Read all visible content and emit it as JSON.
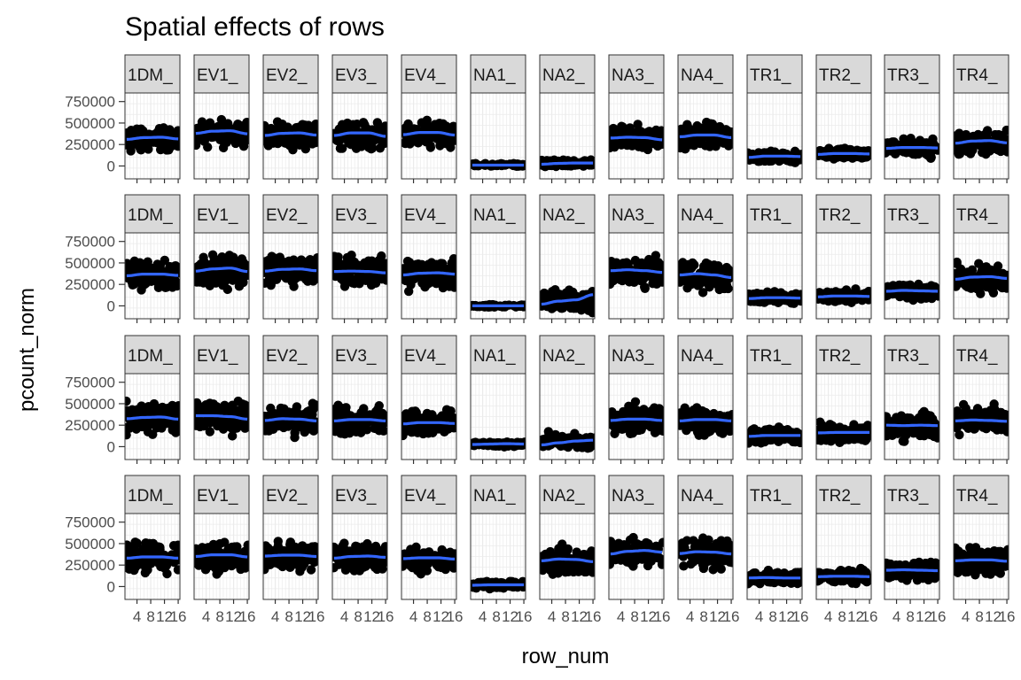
{
  "chart_data": {
    "type": "scatter",
    "title": "Spatial effects of rows",
    "xlabel": "row_num",
    "ylabel": "pcount_norm",
    "facets": [
      "1DM_",
      "EV1_",
      "EV2_",
      "EV3_",
      "EV4_",
      "NA1_",
      "NA2_",
      "NA3_",
      "NA4_",
      "TR1_",
      "TR2_",
      "TR3_",
      "TR4_"
    ],
    "panel_rows": 4,
    "x_tick_labels": [
      "4",
      "8",
      "12",
      "16"
    ],
    "x_ticks": [
      4,
      8,
      12,
      16
    ],
    "xlim": [
      0.5,
      16.5
    ],
    "y_tick_labels": [
      "0",
      "250000",
      "500000",
      "750000"
    ],
    "y_ticks": [
      0,
      250000,
      500000,
      750000
    ],
    "ylim": [
      -150000,
      850000
    ],
    "grid": true,
    "point_color": "#000000",
    "smooth_color": "#3366FF",
    "strip_fill": "#D9D9D9",
    "grid_color": "#EBEBEB",
    "panels": [
      [
        {
          "mean": 310000,
          "spread": 180000,
          "trend": [
            310000,
            330000,
            335000,
            315000
          ]
        },
        {
          "mean": 380000,
          "spread": 200000,
          "trend": [
            380000,
            405000,
            410000,
            375000
          ]
        },
        {
          "mean": 360000,
          "spread": 200000,
          "trend": [
            355000,
            380000,
            385000,
            360000
          ]
        },
        {
          "mean": 350000,
          "spread": 200000,
          "trend": [
            355000,
            385000,
            385000,
            345000
          ]
        },
        {
          "mean": 360000,
          "spread": 200000,
          "trend": [
            365000,
            390000,
            390000,
            360000
          ]
        },
        {
          "mean": 10000,
          "spread": 25000,
          "trend": [
            10000,
            10000,
            10000,
            10000
          ]
        },
        {
          "mean": 30000,
          "spread": 60000,
          "trend": [
            20000,
            30000,
            35000,
            35000
          ]
        },
        {
          "mean": 320000,
          "spread": 190000,
          "trend": [
            325000,
            335000,
            330000,
            305000
          ]
        },
        {
          "mean": 340000,
          "spread": 200000,
          "trend": [
            340000,
            360000,
            360000,
            330000
          ]
        },
        {
          "mean": 110000,
          "spread": 100000,
          "trend": [
            100000,
            115000,
            115000,
            110000
          ]
        },
        {
          "mean": 140000,
          "spread": 90000,
          "trend": [
            135000,
            145000,
            145000,
            140000
          ]
        },
        {
          "mean": 210000,
          "spread": 140000,
          "trend": [
            205000,
            215000,
            215000,
            210000
          ]
        },
        {
          "mean": 270000,
          "spread": 180000,
          "trend": [
            265000,
            290000,
            295000,
            270000
          ]
        }
      ],
      [
        {
          "mean": 350000,
          "spread": 230000,
          "trend": [
            350000,
            370000,
            370000,
            355000
          ]
        },
        {
          "mean": 410000,
          "spread": 250000,
          "trend": [
            405000,
            430000,
            440000,
            400000
          ]
        },
        {
          "mean": 410000,
          "spread": 240000,
          "trend": [
            405000,
            425000,
            430000,
            410000
          ]
        },
        {
          "mean": 400000,
          "spread": 220000,
          "trend": [
            400000,
            405000,
            400000,
            385000
          ]
        },
        {
          "mean": 360000,
          "spread": 240000,
          "trend": [
            360000,
            380000,
            385000,
            370000
          ]
        },
        {
          "mean": 0,
          "spread": 20000,
          "trend": [
            0,
            0,
            0,
            0
          ]
        },
        {
          "mean": 60000,
          "spread": 200000,
          "trend": [
            20000,
            55000,
            70000,
            130000
          ]
        },
        {
          "mean": 400000,
          "spread": 230000,
          "trend": [
            410000,
            420000,
            410000,
            390000
          ]
        },
        {
          "mean": 350000,
          "spread": 240000,
          "trend": [
            360000,
            375000,
            360000,
            330000
          ]
        },
        {
          "mean": 90000,
          "spread": 90000,
          "trend": [
            85000,
            95000,
            95000,
            90000
          ]
        },
        {
          "mean": 110000,
          "spread": 100000,
          "trend": [
            105000,
            115000,
            115000,
            110000
          ]
        },
        {
          "mean": 170000,
          "spread": 120000,
          "trend": [
            170000,
            180000,
            175000,
            170000
          ]
        },
        {
          "mean": 320000,
          "spread": 220000,
          "trend": [
            310000,
            335000,
            340000,
            320000
          ]
        }
      ],
      [
        {
          "mean": 330000,
          "spread": 230000,
          "trend": [
            325000,
            340000,
            345000,
            320000
          ]
        },
        {
          "mean": 350000,
          "spread": 240000,
          "trend": [
            360000,
            360000,
            350000,
            320000
          ]
        },
        {
          "mean": 310000,
          "spread": 220000,
          "trend": [
            305000,
            325000,
            320000,
            300000
          ]
        },
        {
          "mean": 300000,
          "spread": 220000,
          "trend": [
            300000,
            315000,
            315000,
            300000
          ]
        },
        {
          "mean": 270000,
          "spread": 200000,
          "trend": [
            265000,
            280000,
            280000,
            270000
          ]
        },
        {
          "mean": 30000,
          "spread": 40000,
          "trend": [
            25000,
            30000,
            35000,
            30000
          ]
        },
        {
          "mean": 60000,
          "spread": 120000,
          "trend": [
            20000,
            45000,
            65000,
            75000
          ]
        },
        {
          "mean": 310000,
          "spread": 220000,
          "trend": [
            305000,
            320000,
            320000,
            305000
          ]
        },
        {
          "mean": 300000,
          "spread": 220000,
          "trend": [
            300000,
            315000,
            315000,
            300000
          ]
        },
        {
          "mean": 130000,
          "spread": 120000,
          "trend": [
            120000,
            130000,
            130000,
            130000
          ]
        },
        {
          "mean": 160000,
          "spread": 140000,
          "trend": [
            160000,
            165000,
            165000,
            165000
          ]
        },
        {
          "mean": 240000,
          "spread": 220000,
          "trend": [
            250000,
            245000,
            250000,
            245000
          ]
        },
        {
          "mean": 300000,
          "spread": 220000,
          "trend": [
            300000,
            310000,
            305000,
            295000
          ]
        }
      ],
      [
        {
          "mean": 330000,
          "spread": 230000,
          "trend": [
            330000,
            345000,
            345000,
            330000
          ]
        },
        {
          "mean": 350000,
          "spread": 230000,
          "trend": [
            350000,
            370000,
            370000,
            345000
          ]
        },
        {
          "mean": 350000,
          "spread": 220000,
          "trend": [
            355000,
            365000,
            365000,
            350000
          ]
        },
        {
          "mean": 340000,
          "spread": 220000,
          "trend": [
            330000,
            350000,
            355000,
            340000
          ]
        },
        {
          "mean": 320000,
          "spread": 210000,
          "trend": [
            325000,
            335000,
            335000,
            320000
          ]
        },
        {
          "mean": 20000,
          "spread": 50000,
          "trend": [
            15000,
            20000,
            20000,
            20000
          ]
        },
        {
          "mean": 300000,
          "spread": 220000,
          "trend": [
            300000,
            320000,
            315000,
            290000
          ]
        },
        {
          "mean": 400000,
          "spread": 230000,
          "trend": [
            380000,
            410000,
            420000,
            400000
          ]
        },
        {
          "mean": 390000,
          "spread": 240000,
          "trend": [
            385000,
            405000,
            400000,
            380000
          ]
        },
        {
          "mean": 100000,
          "spread": 100000,
          "trend": [
            100000,
            105000,
            100000,
            100000
          ]
        },
        {
          "mean": 120000,
          "spread": 110000,
          "trend": [
            115000,
            120000,
            120000,
            115000
          ]
        },
        {
          "mean": 190000,
          "spread": 150000,
          "trend": [
            190000,
            195000,
            190000,
            185000
          ]
        },
        {
          "mean": 300000,
          "spread": 220000,
          "trend": [
            300000,
            310000,
            310000,
            295000
          ]
        }
      ]
    ]
  }
}
